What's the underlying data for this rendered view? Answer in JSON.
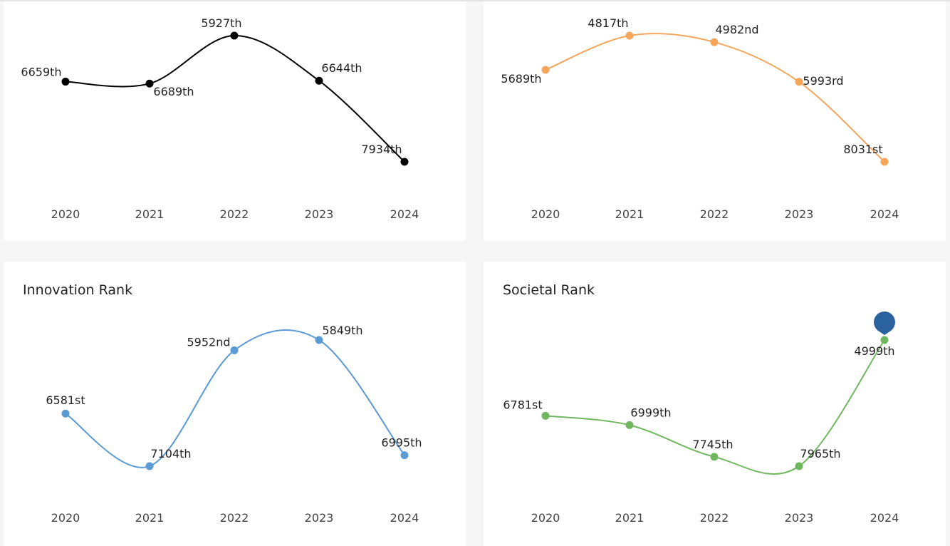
{
  "chart_data": [
    {
      "type": "line",
      "title": "",
      "categories": [
        "2020",
        "2021",
        "2022",
        "2023",
        "2024"
      ],
      "series": [
        {
          "values": [
            6659,
            6689,
            5927,
            6644,
            7934
          ],
          "labels": [
            "6659th",
            "6689th",
            "5927th",
            "6644th",
            "7934th"
          ]
        }
      ],
      "color": "#000000",
      "y_inverted": true,
      "xlabel": "",
      "ylabel": ""
    },
    {
      "type": "line",
      "title": "",
      "categories": [
        "2020",
        "2021",
        "2022",
        "2023",
        "2024"
      ],
      "series": [
        {
          "values": [
            5689,
            4817,
            4982,
            5993,
            8031
          ],
          "labels": [
            "5689th",
            "4817th",
            "4982nd",
            "5993rd",
            "8031st"
          ]
        }
      ],
      "color": "#f5a55a",
      "y_inverted": true,
      "xlabel": "",
      "ylabel": ""
    },
    {
      "type": "line",
      "title": "Innovation Rank",
      "categories": [
        "2020",
        "2021",
        "2022",
        "2023",
        "2024"
      ],
      "series": [
        {
          "values": [
            6581,
            7104,
            5952,
            5849,
            6995
          ],
          "labels": [
            "6581st",
            "7104th",
            "5952nd",
            "5849th",
            "6995th"
          ]
        }
      ],
      "color": "#5b9bd5",
      "y_inverted": true,
      "xlabel": "",
      "ylabel": ""
    },
    {
      "type": "line",
      "title": "Societal Rank",
      "categories": [
        "2020",
        "2021",
        "2022",
        "2023",
        "2024"
      ],
      "series": [
        {
          "values": [
            6781,
            6999,
            7745,
            7965,
            4999
          ],
          "labels": [
            "6781st",
            "6999th",
            "7745th",
            "7965th",
            "4999th"
          ]
        }
      ],
      "color": "#70b85f",
      "marker_color": "#2a62a0",
      "marker_on": "2024",
      "y_inverted": true,
      "xlabel": "",
      "ylabel": ""
    }
  ]
}
